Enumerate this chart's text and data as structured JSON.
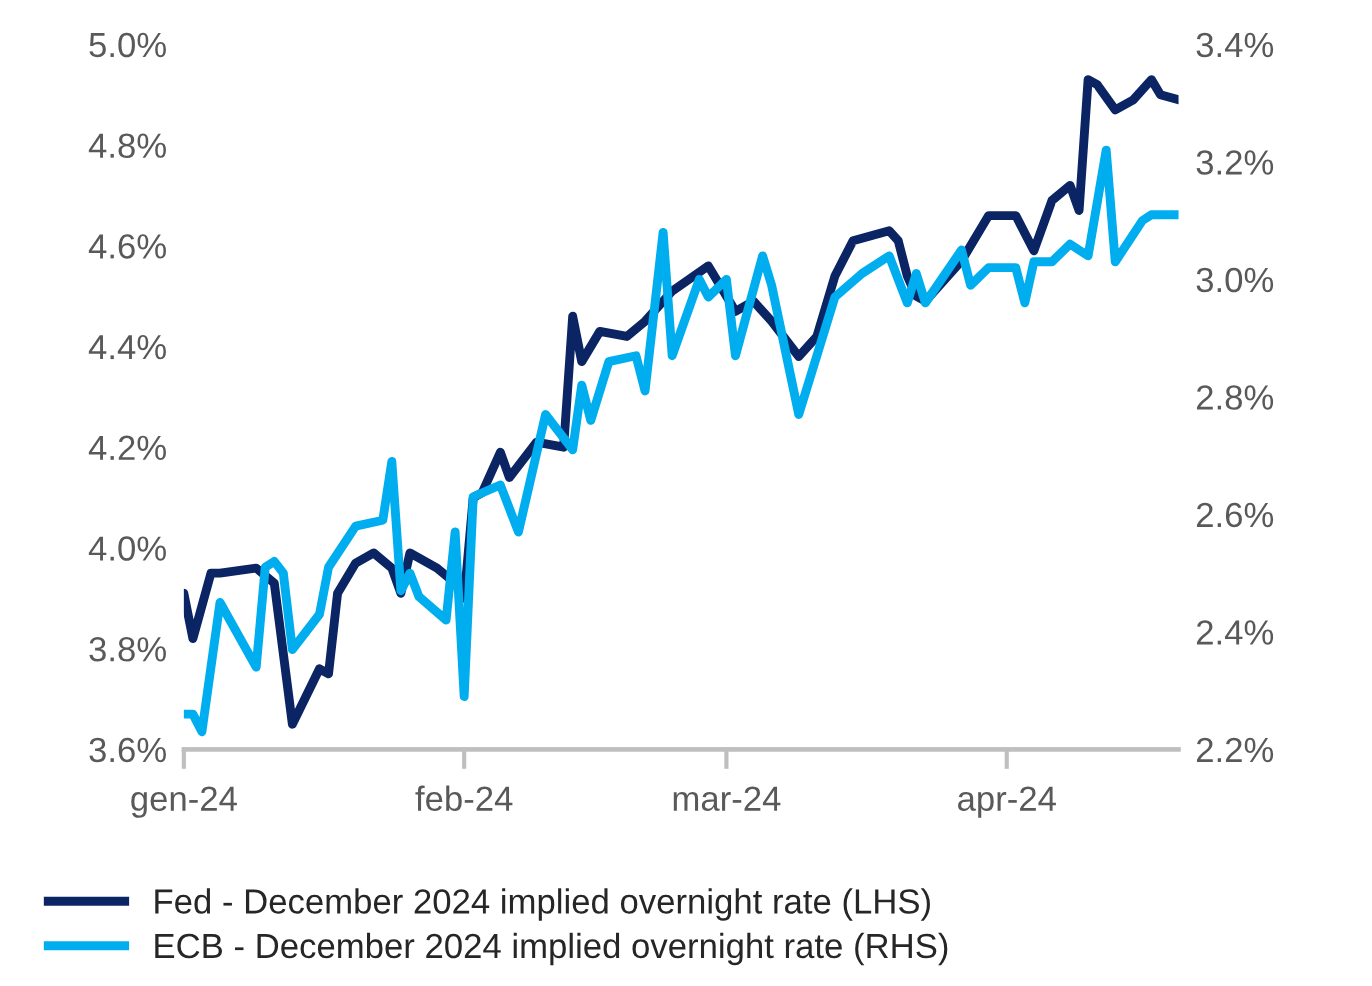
{
  "chart_data": {
    "type": "line",
    "xlim": [
      "2024-01-01",
      "2024-04-20"
    ],
    "xticks": [
      {
        "value": "2024-01-01",
        "label": "gen-24"
      },
      {
        "value": "2024-02-01",
        "label": "feb-24"
      },
      {
        "value": "2024-03-01",
        "label": "mar-24"
      },
      {
        "value": "2024-04-01",
        "label": "apr-24"
      }
    ],
    "ylim": [
      3.6,
      5.0
    ],
    "yticks": [
      {
        "value": 3.6,
        "label": "3.6%"
      },
      {
        "value": 3.8,
        "label": "3.8%"
      },
      {
        "value": 4.0,
        "label": "4.0%"
      },
      {
        "value": 4.2,
        "label": "4.2%"
      },
      {
        "value": 4.4,
        "label": "4.4%"
      },
      {
        "value": 4.6,
        "label": "4.6%"
      },
      {
        "value": 4.8,
        "label": "4.8%"
      },
      {
        "value": 5.0,
        "label": "5.0%"
      }
    ],
    "y2lim": [
      2.2,
      3.4
    ],
    "y2ticks": [
      {
        "value": 2.2,
        "label": "2.2%"
      },
      {
        "value": 2.4,
        "label": "2.4%"
      },
      {
        "value": 2.6,
        "label": "2.6%"
      },
      {
        "value": 2.8,
        "label": "2.8%"
      },
      {
        "value": 3.0,
        "label": "3.0%"
      },
      {
        "value": 3.2,
        "label": "3.2%"
      },
      {
        "value": 3.4,
        "label": "3.4%"
      }
    ],
    "grid": false,
    "legend": "bottom",
    "marker": "none",
    "line_style": "solid",
    "series": [
      {
        "name": "Fed - December 2024 implied overnight rate (LHS)",
        "color": "#0b2463",
        "axis": "y",
        "x": [
          "2024-01-01",
          "2024-01-02",
          "2024-01-04",
          "2024-01-05",
          "2024-01-09",
          "2024-01-11",
          "2024-01-13",
          "2024-01-16",
          "2024-01-17",
          "2024-01-18",
          "2024-01-20",
          "2024-01-22",
          "2024-01-24",
          "2024-01-25",
          "2024-01-26",
          "2024-01-29",
          "2024-01-31",
          "2024-02-01",
          "2024-02-02",
          "2024-02-03",
          "2024-02-05",
          "2024-02-06",
          "2024-02-09",
          "2024-02-12",
          "2024-02-13",
          "2024-02-14",
          "2024-02-16",
          "2024-02-19",
          "2024-02-21",
          "2024-02-24",
          "2024-02-28",
          "2024-02-29",
          "2024-03-02",
          "2024-03-04",
          "2024-03-06",
          "2024-03-09",
          "2024-03-11",
          "2024-03-13",
          "2024-03-15",
          "2024-03-19",
          "2024-03-20",
          "2024-03-21",
          "2024-03-22",
          "2024-03-23",
          "2024-03-27",
          "2024-03-30",
          "2024-04-02",
          "2024-04-04",
          "2024-04-06",
          "2024-04-08",
          "2024-04-09",
          "2024-04-10",
          "2024-04-11",
          "2024-04-13",
          "2024-04-15",
          "2024-04-17",
          "2024-04-18",
          "2024-04-20"
        ],
        "values": [
          3.91,
          3.82,
          3.95,
          3.95,
          3.96,
          3.93,
          3.65,
          3.76,
          3.75,
          3.91,
          3.97,
          3.99,
          3.96,
          3.91,
          3.99,
          3.96,
          3.93,
          3.9,
          4.1,
          4.11,
          4.19,
          4.14,
          4.21,
          4.2,
          4.46,
          4.37,
          4.43,
          4.42,
          4.45,
          4.51,
          4.56,
          4.53,
          4.47,
          4.49,
          4.45,
          4.38,
          4.42,
          4.54,
          4.61,
          4.63,
          4.61,
          4.54,
          4.5,
          4.49,
          4.57,
          4.66,
          4.66,
          4.59,
          4.69,
          4.72,
          4.67,
          4.93,
          4.92,
          4.87,
          4.89,
          4.93,
          4.9,
          4.89
        ]
      },
      {
        "name": "ECB - December 2024 implied overnight rate (RHS)",
        "color": "#00aeef",
        "axis": "y2",
        "x": [
          "2024-01-01",
          "2024-01-02",
          "2024-01-03",
          "2024-01-05",
          "2024-01-09",
          "2024-01-10",
          "2024-01-11",
          "2024-01-12",
          "2024-01-13",
          "2024-01-16",
          "2024-01-17",
          "2024-01-20",
          "2024-01-23",
          "2024-01-24",
          "2024-01-25",
          "2024-01-26",
          "2024-01-27",
          "2024-01-30",
          "2024-01-31",
          "2024-02-01",
          "2024-02-02",
          "2024-02-05",
          "2024-02-07",
          "2024-02-10",
          "2024-02-13",
          "2024-02-14",
          "2024-02-15",
          "2024-02-17",
          "2024-02-20",
          "2024-02-21",
          "2024-02-23",
          "2024-02-24",
          "2024-02-27",
          "2024-02-28",
          "2024-03-01",
          "2024-03-02",
          "2024-03-05",
          "2024-03-06",
          "2024-03-09",
          "2024-03-13",
          "2024-03-16",
          "2024-03-19",
          "2024-03-21",
          "2024-03-22",
          "2024-03-23",
          "2024-03-27",
          "2024-03-28",
          "2024-03-30",
          "2024-04-02",
          "2024-04-03",
          "2024-04-04",
          "2024-04-06",
          "2024-04-08",
          "2024-04-10",
          "2024-04-12",
          "2024-04-13",
          "2024-04-16",
          "2024-04-17",
          "2024-04-20"
        ],
        "values": [
          2.26,
          2.26,
          2.23,
          2.45,
          2.34,
          2.51,
          2.52,
          2.5,
          2.37,
          2.43,
          2.51,
          2.58,
          2.59,
          2.69,
          2.47,
          2.5,
          2.46,
          2.42,
          2.57,
          2.29,
          2.63,
          2.65,
          2.57,
          2.77,
          2.71,
          2.82,
          2.76,
          2.86,
          2.87,
          2.81,
          3.08,
          2.87,
          3.0,
          2.97,
          3.0,
          2.87,
          3.04,
          2.99,
          2.77,
          2.97,
          3.01,
          3.04,
          2.96,
          3.01,
          2.96,
          3.05,
          2.99,
          3.02,
          3.02,
          2.96,
          3.03,
          3.03,
          3.06,
          3.04,
          3.22,
          3.03,
          3.1,
          3.11,
          3.11
        ]
      }
    ]
  }
}
